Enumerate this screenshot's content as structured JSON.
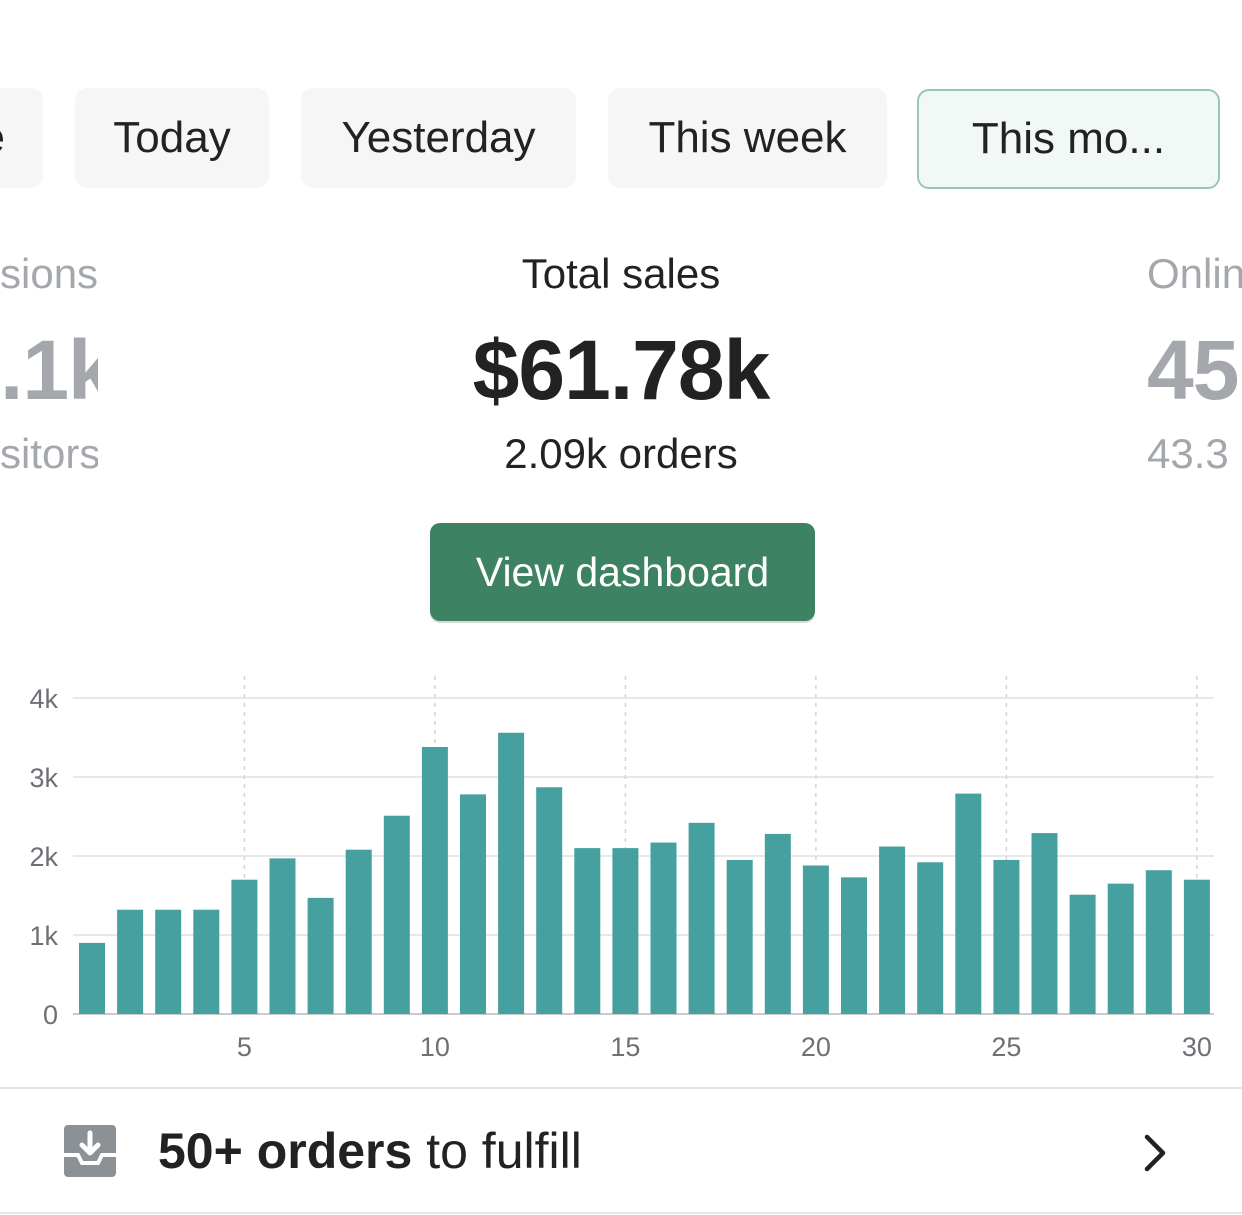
{
  "tabs": [
    {
      "label": "e",
      "active": false
    },
    {
      "label": "Today",
      "active": false
    },
    {
      "label": "Yesterday",
      "active": false
    },
    {
      "label": "This week",
      "active": false
    },
    {
      "label": "This mo...",
      "active": true
    }
  ],
  "metrics": {
    "left": {
      "label": "sions",
      "value": ".1k",
      "sub": "sitors"
    },
    "center": {
      "label": "Total sales",
      "value": "$61.78k",
      "sub": "2.09k orders"
    },
    "right": {
      "label": "Onlin",
      "value": "45",
      "sub": "43.3"
    }
  },
  "view_dashboard_label": "View dashboard",
  "colors": {
    "accent": "#3e8264",
    "bar": "#47a0a0",
    "active_tab_border": "#95c9b4"
  },
  "chart_data": {
    "type": "bar",
    "categories": [
      "1",
      "2",
      "3",
      "4",
      "5",
      "6",
      "7",
      "8",
      "9",
      "10",
      "11",
      "12",
      "13",
      "14",
      "15",
      "16",
      "17",
      "18",
      "19",
      "20",
      "21",
      "22",
      "23",
      "24",
      "25",
      "26",
      "27",
      "28",
      "29",
      "30"
    ],
    "values": [
      900,
      1320,
      1320,
      1320,
      1700,
      1970,
      1470,
      2080,
      2510,
      3380,
      2780,
      3560,
      2870,
      2100,
      2100,
      2170,
      2420,
      1950,
      2280,
      1880,
      1730,
      2120,
      1920,
      2790,
      1950,
      2290,
      1510,
      1650,
      1820,
      1700
    ],
    "xticks": [
      "5",
      "10",
      "15",
      "20",
      "25",
      "30"
    ],
    "yticks": [
      "0",
      "1k",
      "2k",
      "3k",
      "4k"
    ],
    "ylim": [
      0,
      4000
    ],
    "grid": true
  },
  "fulfill": {
    "bold": "50+ orders",
    "rest": " to fulfill",
    "icon": "inbox-download-icon",
    "chevron": "chevron-right-icon"
  }
}
